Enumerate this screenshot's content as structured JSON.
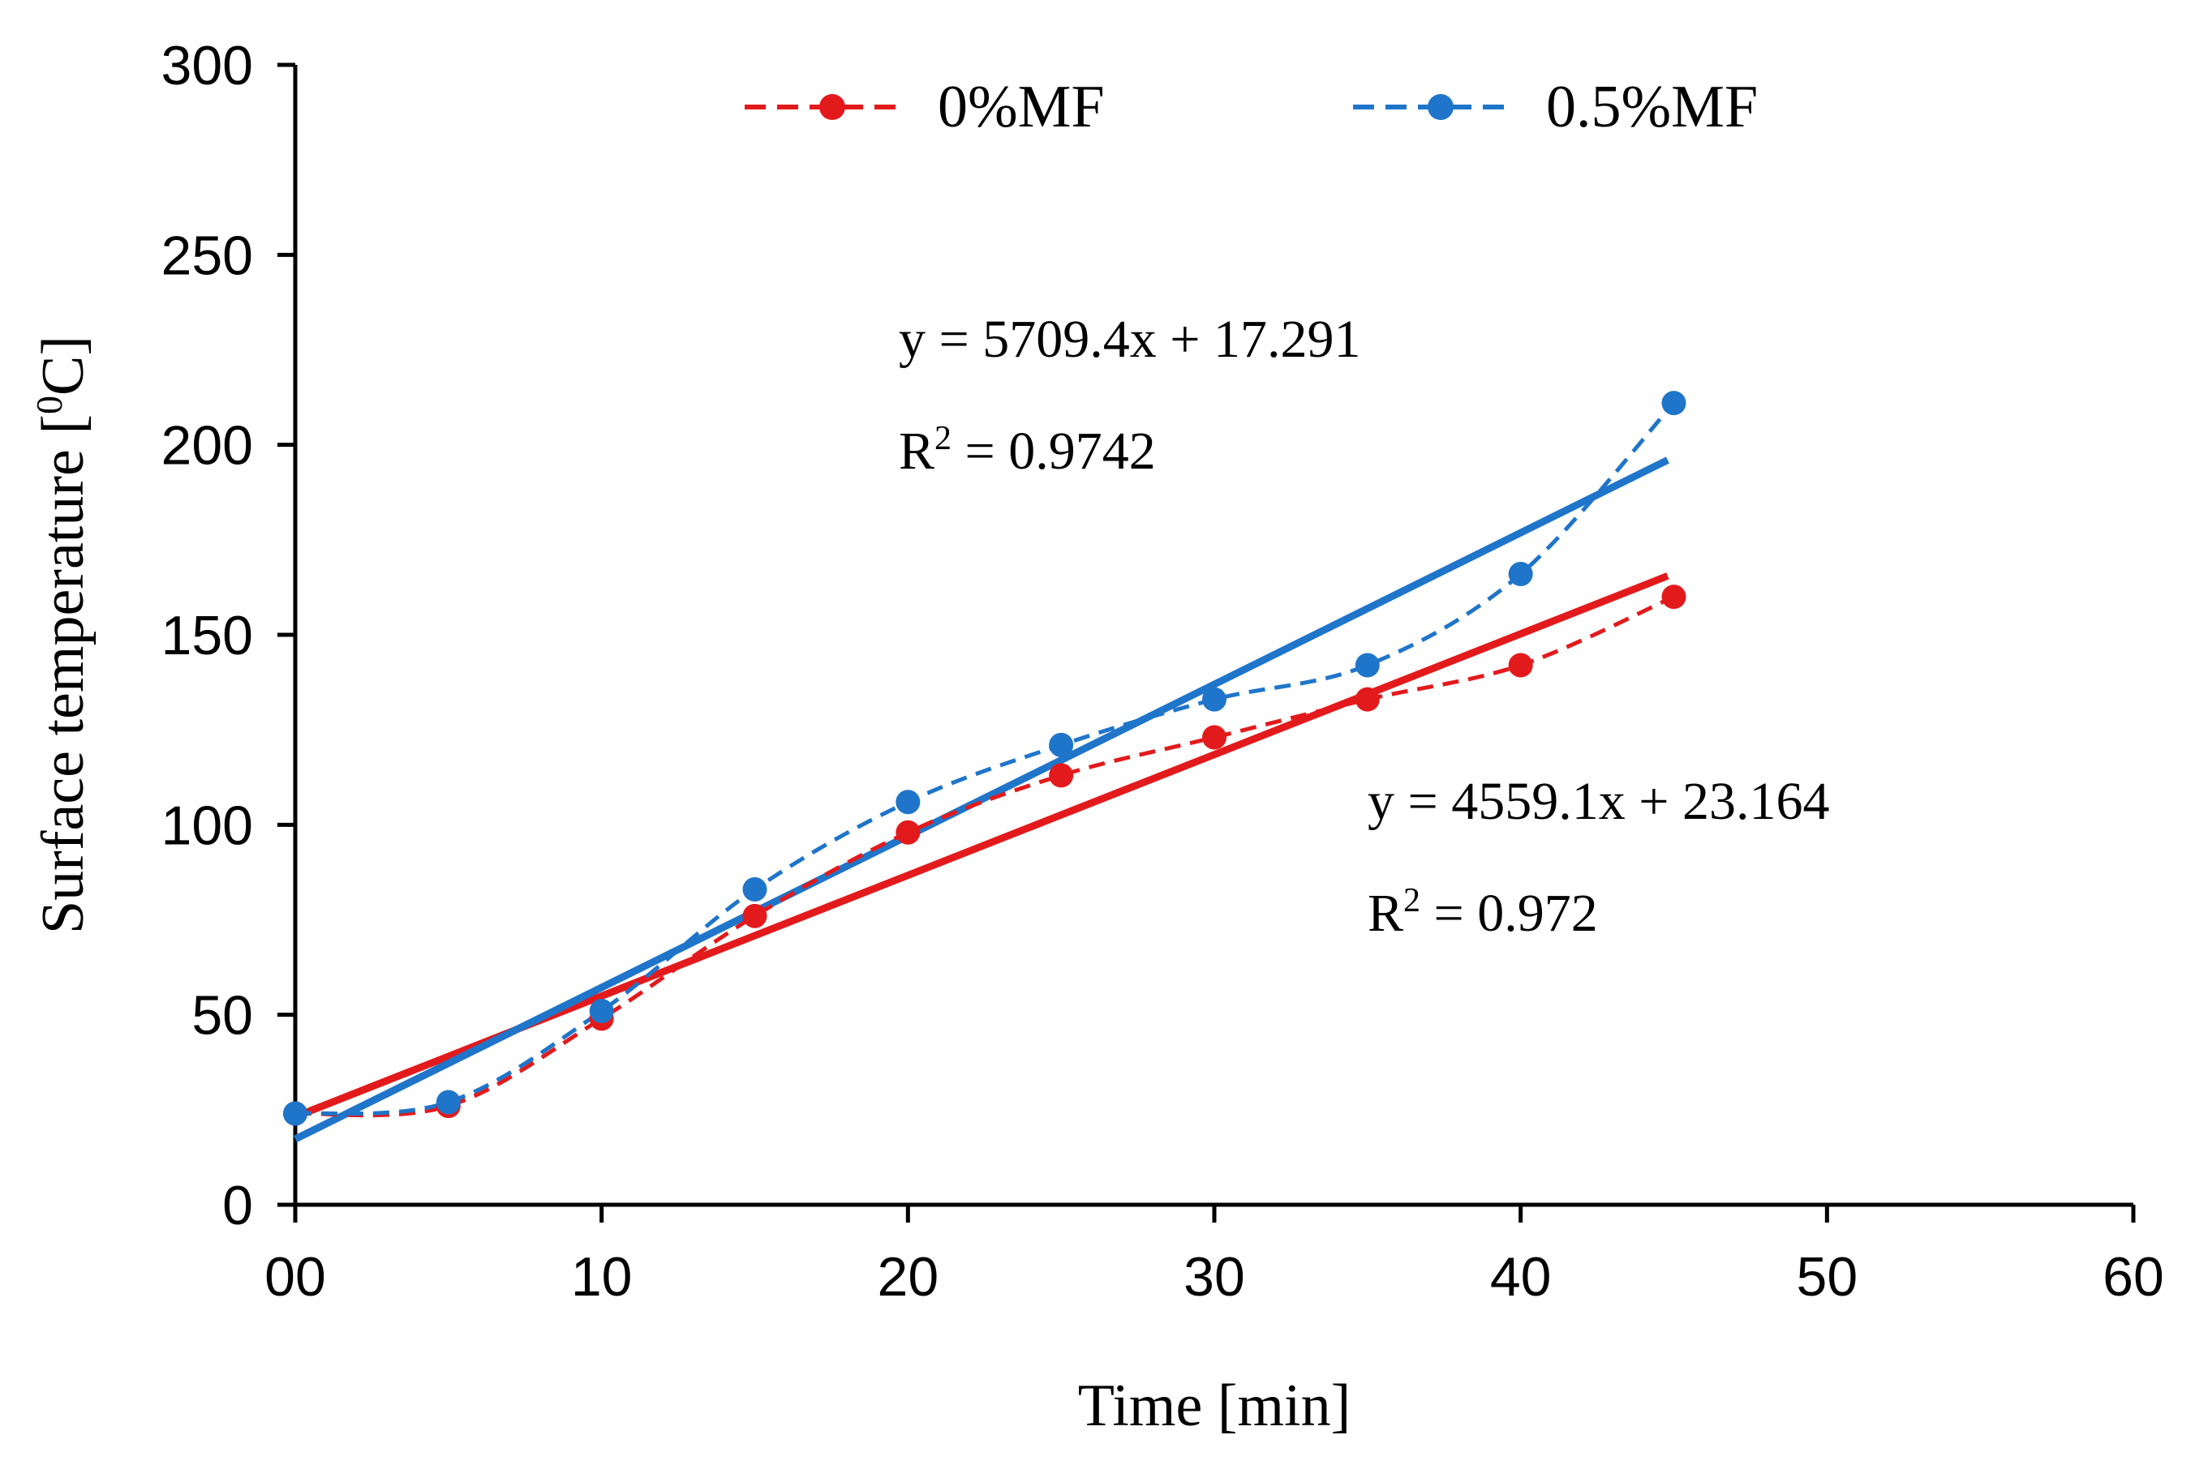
{
  "chart_data": {
    "type": "line",
    "title": "",
    "xlabel": "Time [min]",
    "ylabel_main": "Surface temperature [",
    "ylabel_sup": "0",
    "ylabel_end": "C]",
    "xlim": [
      0,
      60
    ],
    "ylim": [
      0,
      300
    ],
    "x_ticks": [
      0,
      10,
      20,
      30,
      40,
      50,
      60
    ],
    "x_tick_labels": [
      "00",
      "10",
      "20",
      "30",
      "40",
      "50",
      "60"
    ],
    "y_ticks": [
      0,
      50,
      100,
      150,
      200,
      250,
      300
    ],
    "y_tick_labels": [
      "0",
      "50",
      "100",
      "150",
      "200",
      "250",
      "300"
    ],
    "grid": false,
    "legend_position": "top-center",
    "series": [
      {
        "name": "0%MF",
        "color": "#e31a1c",
        "style": "dashed-with-markers",
        "x": [
          0,
          5,
          10,
          15,
          20,
          25,
          30,
          35,
          40,
          45
        ],
        "y": [
          24,
          26,
          49,
          76,
          98,
          113,
          123,
          133,
          142,
          160
        ],
        "trendline": {
          "x": [
            0,
            44.8
          ],
          "y": [
            23.164,
            165.5
          ]
        }
      },
      {
        "name": "0.5%MF",
        "color": "#1f75c9",
        "style": "dashed-with-markers",
        "x": [
          0,
          5,
          10,
          15,
          20,
          25,
          30,
          35,
          40,
          45
        ],
        "y": [
          24,
          27,
          51,
          83,
          106,
          121,
          133,
          142,
          166,
          211
        ],
        "trendline": {
          "x": [
            0,
            44.8
          ],
          "y": [
            17.291,
            196.0
          ]
        }
      }
    ],
    "annotations": [
      {
        "id": "blue-equation",
        "text": "y = 5709.4x + 17.291",
        "r2_prefix": "R",
        "r2_sup": "2",
        "r2_suffix": " = 0.9742"
      },
      {
        "id": "red-equation",
        "text": "y = 4559.1x + 23.164",
        "r2_prefix": "R",
        "r2_sup": "2",
        "r2_suffix": " = 0.972"
      }
    ]
  }
}
